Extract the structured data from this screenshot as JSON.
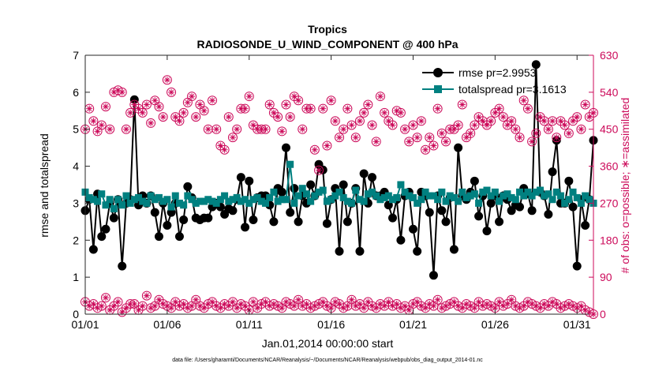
{
  "chart_data": {
    "type": "line",
    "title": "Tropics",
    "subtitle": "RADIOSONDE_U_WIND_COMPONENT @ 400 hPa",
    "xlabel": "Jan.01,2014 00:00:00 start",
    "ylabel_left": "rmse and totalspread",
    "ylabel_right": "# of obs: o=possible; ∗=assimilated",
    "footer": "data file: /Users/gharamti/Documents/NCAR/Reanalysis/~/Documents/NCAR/Reanalysis/webpub/obs_diag_output_2014-01.nc",
    "xlim": [
      1,
      32
    ],
    "ylim_left": [
      0,
      7
    ],
    "ylim_right": [
      0,
      630
    ],
    "x_ticks": [
      {
        "value": 1,
        "label": "01/01"
      },
      {
        "value": 6,
        "label": "01/06"
      },
      {
        "value": 11,
        "label": "01/11"
      },
      {
        "value": 16,
        "label": "01/16"
      },
      {
        "value": 21,
        "label": "01/21"
      },
      {
        "value": 26,
        "label": "01/26"
      },
      {
        "value": 31,
        "label": "01/31"
      }
    ],
    "y_ticks_left": [
      {
        "value": 0,
        "label": "0"
      },
      {
        "value": 1,
        "label": "1"
      },
      {
        "value": 2,
        "label": "2"
      },
      {
        "value": 3,
        "label": "3"
      },
      {
        "value": 4,
        "label": "4"
      },
      {
        "value": 5,
        "label": "5"
      },
      {
        "value": 6,
        "label": "6"
      },
      {
        "value": 7,
        "label": "7"
      }
    ],
    "y_ticks_right": [
      {
        "value": 0,
        "label": "0"
      },
      {
        "value": 90,
        "label": "90"
      },
      {
        "value": 180,
        "label": "180"
      },
      {
        "value": 270,
        "label": "270"
      },
      {
        "value": 360,
        "label": "360"
      },
      {
        "value": 450,
        "label": "450"
      },
      {
        "value": 540,
        "label": "540"
      },
      {
        "value": 630,
        "label": "630"
      }
    ],
    "x": [
      1.0,
      1.25,
      1.5,
      1.75,
      2.0,
      2.25,
      2.5,
      2.75,
      3.0,
      3.25,
      3.5,
      3.75,
      4.0,
      4.25,
      4.5,
      4.75,
      5.0,
      5.25,
      5.5,
      5.75,
      6.0,
      6.25,
      6.5,
      6.75,
      7.0,
      7.25,
      7.5,
      7.75,
      8.0,
      8.25,
      8.5,
      8.75,
      9.0,
      9.25,
      9.5,
      9.75,
      10.0,
      10.25,
      10.5,
      10.75,
      11.0,
      11.25,
      11.5,
      11.75,
      12.0,
      12.25,
      12.5,
      12.75,
      13.0,
      13.25,
      13.5,
      13.75,
      14.0,
      14.25,
      14.5,
      14.75,
      15.0,
      15.25,
      15.5,
      15.75,
      16.0,
      16.25,
      16.5,
      16.75,
      17.0,
      17.25,
      17.5,
      17.75,
      18.0,
      18.25,
      18.5,
      18.75,
      19.0,
      19.25,
      19.5,
      19.75,
      20.0,
      20.25,
      20.5,
      20.75,
      21.0,
      21.25,
      21.5,
      21.75,
      22.0,
      22.25,
      22.5,
      22.75,
      23.0,
      23.25,
      23.5,
      23.75,
      24.0,
      24.25,
      24.5,
      24.75,
      25.0,
      25.25,
      25.5,
      25.75,
      26.0,
      26.25,
      26.5,
      26.75,
      27.0,
      27.25,
      27.5,
      27.75,
      28.0,
      28.25,
      28.5,
      28.75,
      29.0,
      29.25,
      29.5,
      29.75,
      30.0,
      30.25,
      30.5,
      30.75,
      31.0,
      31.25,
      31.5,
      31.75,
      32.0
    ],
    "series": [
      {
        "name": "rmse",
        "legend": "rmse pr=2.9953",
        "color": "#000000",
        "marker": "circle",
        "axis": "left",
        "values": [
          2.8,
          3.1,
          1.75,
          3.25,
          2.1,
          2.3,
          3.0,
          2.6,
          3.1,
          1.3,
          3.0,
          3.1,
          5.8,
          2.95,
          3.2,
          3.0,
          3.2,
          2.75,
          2.1,
          3.0,
          2.4,
          2.75,
          3.0,
          2.1,
          2.55,
          3.45,
          3.15,
          2.6,
          2.55,
          2.6,
          2.6,
          2.9,
          3.0,
          2.9,
          2.7,
          2.85,
          2.8,
          3.1,
          3.7,
          2.35,
          3.6,
          2.55,
          3.15,
          3.2,
          3.2,
          2.95,
          2.5,
          3.4,
          3.3,
          4.5,
          2.75,
          3.4,
          2.5,
          3.2,
          3.0,
          3.5,
          3.2,
          4.05,
          3.9,
          2.45,
          3.1,
          3.4,
          1.7,
          3.5,
          2.5,
          3.0,
          3.4,
          1.7,
          3.8,
          3.0,
          3.7,
          3.2,
          3.2,
          3.3,
          2.95,
          2.6,
          3.1,
          2.0,
          3.2,
          3.3,
          2.3,
          1.7,
          3.3,
          3.2,
          2.75,
          1.05,
          3.2,
          2.8,
          2.5,
          3.15,
          1.75,
          4.5,
          3.2,
          3.1,
          3.3,
          3.6,
          2.65,
          3.2,
          2.25,
          3.0,
          3.2,
          2.5,
          3.2,
          3.1,
          2.8,
          2.95,
          2.9,
          3.4,
          3.25,
          2.8,
          6.75,
          3.3,
          3.2,
          2.7,
          3.85,
          4.7,
          3.0,
          3.0,
          3.6,
          2.9,
          1.3,
          3.1,
          2.4,
          3.1,
          4.7
        ]
      },
      {
        "name": "totalspread",
        "legend": "totalspread pr=3.1613",
        "color": "#008080",
        "marker": "square",
        "axis": "left",
        "values": [
          3.3,
          3.15,
          3.1,
          3.05,
          3.25,
          2.95,
          3.1,
          2.85,
          3.1,
          2.95,
          3.2,
          3.0,
          3.1,
          3.15,
          3.05,
          3.0,
          3.2,
          3.1,
          3.15,
          3.05,
          3.1,
          2.9,
          3.2,
          3.0,
          2.95,
          3.2,
          3.1,
          3.0,
          3.05,
          3.05,
          3.1,
          3.05,
          3.0,
          3.1,
          3.2,
          3.05,
          3.1,
          3.15,
          3.05,
          3.1,
          3.0,
          3.1,
          3.15,
          3.05,
          3.0,
          3.15,
          3.3,
          3.05,
          3.1,
          3.1,
          4.05,
          3.0,
          3.2,
          3.4,
          3.25,
          3.05,
          3.2,
          3.3,
          3.35,
          3.05,
          3.1,
          3.2,
          3.3,
          3.15,
          3.05,
          3.0,
          3.35,
          3.1,
          3.05,
          3.25,
          3.3,
          3.2,
          3.1,
          3.15,
          3.2,
          3.1,
          3.15,
          3.5,
          3.3,
          3.2,
          3.15,
          3.0,
          3.1,
          3.3,
          3.2,
          3.2,
          3.1,
          3.3,
          3.05,
          3.2,
          3.15,
          3.05,
          3.3,
          3.15,
          3.2,
          3.25,
          3.0,
          3.3,
          3.35,
          3.2,
          3.3,
          3.05,
          3.2,
          3.25,
          3.15,
          3.1,
          3.3,
          3.2,
          3.3,
          3.2,
          3.3,
          3.35,
          3.2,
          3.25,
          3.1,
          3.3,
          3.2,
          3.0,
          3.1,
          3.3,
          3.15,
          3.0,
          3.2,
          3.1,
          3.0
        ]
      },
      {
        "name": "obs possible/assimilated (central)",
        "color": "#cc0a5a",
        "marker": "circle-star",
        "axis": "right",
        "values": [
          450,
          500,
          470,
          445,
          460,
          505,
          450,
          540,
          545,
          540,
          450,
          490,
          510,
          500,
          490,
          510,
          465,
          520,
          505,
          480,
          570,
          540,
          480,
          470,
          490,
          515,
          530,
          480,
          510,
          495,
          450,
          520,
          450,
          410,
          400,
          480,
          430,
          450,
          500,
          500,
          530,
          460,
          450,
          450,
          450,
          510,
          490,
          480,
          445,
          510,
          480,
          530,
          520,
          450,
          500,
          500,
          400,
          350,
          500,
          410,
          520,
          470,
          430,
          450,
          500,
          460,
          430,
          470,
          490,
          510,
          460,
          420,
          530,
          490,
          470,
          460,
          495,
          490,
          450,
          420,
          460,
          430,
          470,
          400,
          430,
          410,
          500,
          440,
          420,
          450,
          450,
          460,
          510,
          430,
          440,
          460,
          480,
          470,
          460,
          470,
          490,
          500,
          480,
          460,
          470,
          450,
          430,
          520,
          500,
          420,
          440,
          480,
          470,
          450,
          470,
          430,
          470,
          460,
          440,
          470,
          480,
          450,
          510,
          480,
          490
        ]
      },
      {
        "name": "obs possible/assimilated (off-cycle)",
        "color": "#cc0a5a",
        "marker": "circle-star",
        "axis": "right",
        "values": [
          30,
          20,
          25,
          15,
          20,
          40,
          10,
          20,
          30,
          5,
          15,
          25,
          25,
          10,
          20,
          45,
          15,
          20,
          35,
          25,
          20,
          15,
          30,
          20,
          25,
          15,
          20,
          35,
          20,
          15,
          25,
          30,
          20,
          15,
          25,
          20,
          30,
          15,
          25,
          20,
          10,
          30,
          15,
          25,
          30,
          20,
          25,
          20,
          15,
          30,
          25,
          20,
          35,
          20,
          25,
          15,
          20,
          25,
          30,
          20,
          15,
          30,
          25,
          15,
          20,
          35,
          20,
          25,
          15,
          30,
          20,
          15,
          25,
          20,
          30,
          20,
          25,
          15,
          20,
          10,
          25,
          30,
          20,
          15,
          25,
          20,
          35,
          15,
          20,
          25,
          30,
          20,
          15,
          25,
          20,
          15,
          30,
          20,
          25,
          20,
          15,
          30,
          20,
          25,
          35,
          20,
          15,
          20,
          30,
          25,
          20,
          15,
          25,
          20,
          30,
          25,
          15,
          20,
          25,
          20,
          15,
          20,
          10,
          5,
          0
        ]
      }
    ]
  }
}
